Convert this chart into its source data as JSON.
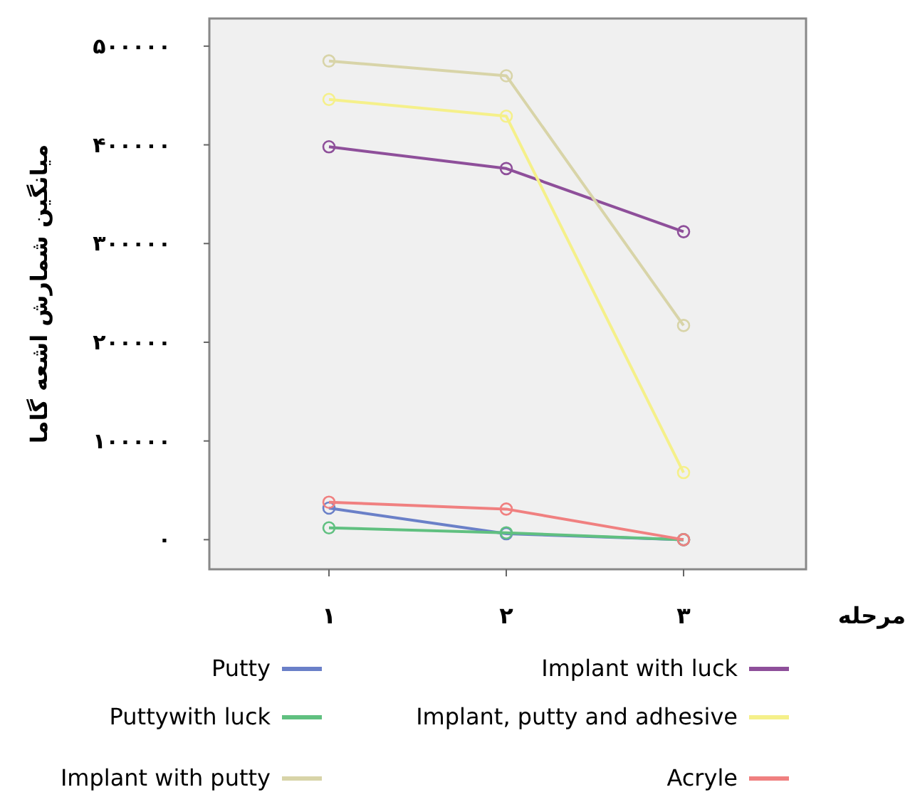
{
  "chart_data": {
    "type": "line",
    "xlabel": "مرحله",
    "ylabel": "میانگین شمارش اشعه گاما",
    "categories": [
      "۱",
      "۲",
      "۳"
    ],
    "ylim": [
      -30000,
      528000
    ],
    "yticks": [
      {
        "value": 0,
        "label": "۰"
      },
      {
        "value": 100000,
        "label": "۱۰۰۰۰۰"
      },
      {
        "value": 200000,
        "label": "۲۰۰۰۰۰"
      },
      {
        "value": 300000,
        "label": "۳۰۰۰۰۰"
      },
      {
        "value": 400000,
        "label": "۴۰۰۰۰۰"
      },
      {
        "value": 500000,
        "label": "۵۰۰۰۰۰"
      }
    ],
    "marker": "circle",
    "line_style": "solid",
    "grid": false,
    "legend": "bottom",
    "series": [
      {
        "name": "Putty",
        "color": "#6a80c8",
        "values": [
          32000,
          6000,
          0
        ]
      },
      {
        "name": "Implant with luck",
        "color": "#8e4f9a",
        "values": [
          398000,
          376000,
          312000
        ]
      },
      {
        "name": "Puttywith luck",
        "color": "#60c080",
        "values": [
          12000,
          7000,
          0
        ]
      },
      {
        "name": "Implant, putty and adhesive",
        "color": "#f5f08a",
        "values": [
          446000,
          429000,
          68000
        ]
      },
      {
        "name": "Implant with putty",
        "color": "#d8d4a8",
        "values": [
          485000,
          470000,
          217000
        ]
      },
      {
        "name": "Acryle",
        "color": "#f08080",
        "values": [
          38000,
          31000,
          0
        ]
      }
    ]
  }
}
